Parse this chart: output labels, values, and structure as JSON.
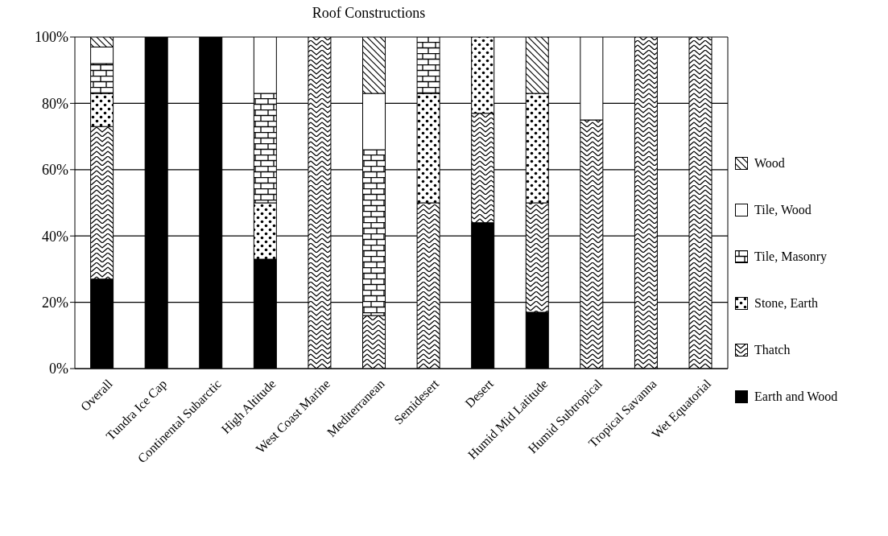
{
  "chart_data": {
    "type": "bar",
    "title": "Roof Constructions",
    "stacked": true,
    "grid": "y",
    "legend": "right",
    "categories": [
      "Overall",
      "Tundra Ice Cap",
      "Continental Subarctic",
      "High Altitude",
      "West Coast Marine",
      "Mediterranean",
      "Semidesert",
      "Desert",
      "Humid Mid Latitude",
      "Humid Subtropical",
      "Tropical Savanna",
      "Wet Equatorial"
    ],
    "ylim": [
      0,
      100
    ],
    "yticks": [
      {
        "value": 0,
        "label": "0%"
      },
      {
        "value": 20,
        "label": "20%"
      },
      {
        "value": 40,
        "label": "40%"
      },
      {
        "value": 60,
        "label": "60%"
      },
      {
        "value": 80,
        "label": "80%"
      },
      {
        "value": 100,
        "label": "100%"
      }
    ],
    "series": [
      {
        "name": "Earth and Wood",
        "color": "#000000",
        "values": [
          27,
          100,
          100,
          33,
          0,
          0,
          0,
          44,
          17,
          0,
          0,
          0
        ]
      },
      {
        "name": "Thatch",
        "color": "#000000",
        "values": [
          46,
          0,
          0,
          0,
          100,
          16,
          50,
          33,
          33,
          75,
          100,
          100
        ]
      },
      {
        "name": "Stone, Earth",
        "color": "#000000",
        "values": [
          10,
          0,
          0,
          17,
          0,
          0,
          33,
          23,
          33,
          0,
          0,
          0
        ]
      },
      {
        "name": "Tile, Masonry",
        "color": "#000000",
        "values": [
          9,
          0,
          0,
          33,
          0,
          50,
          17,
          0,
          0,
          0,
          0,
          0
        ]
      },
      {
        "name": "Tile, Wood",
        "color": "#ffffff",
        "values": [
          5,
          0,
          0,
          17,
          0,
          17,
          0,
          0,
          0,
          25,
          0,
          0
        ]
      },
      {
        "name": "Wood",
        "color": "#000000",
        "values": [
          3,
          0,
          0,
          0,
          0,
          17,
          0,
          0,
          17,
          0,
          0,
          0
        ]
      }
    ]
  }
}
